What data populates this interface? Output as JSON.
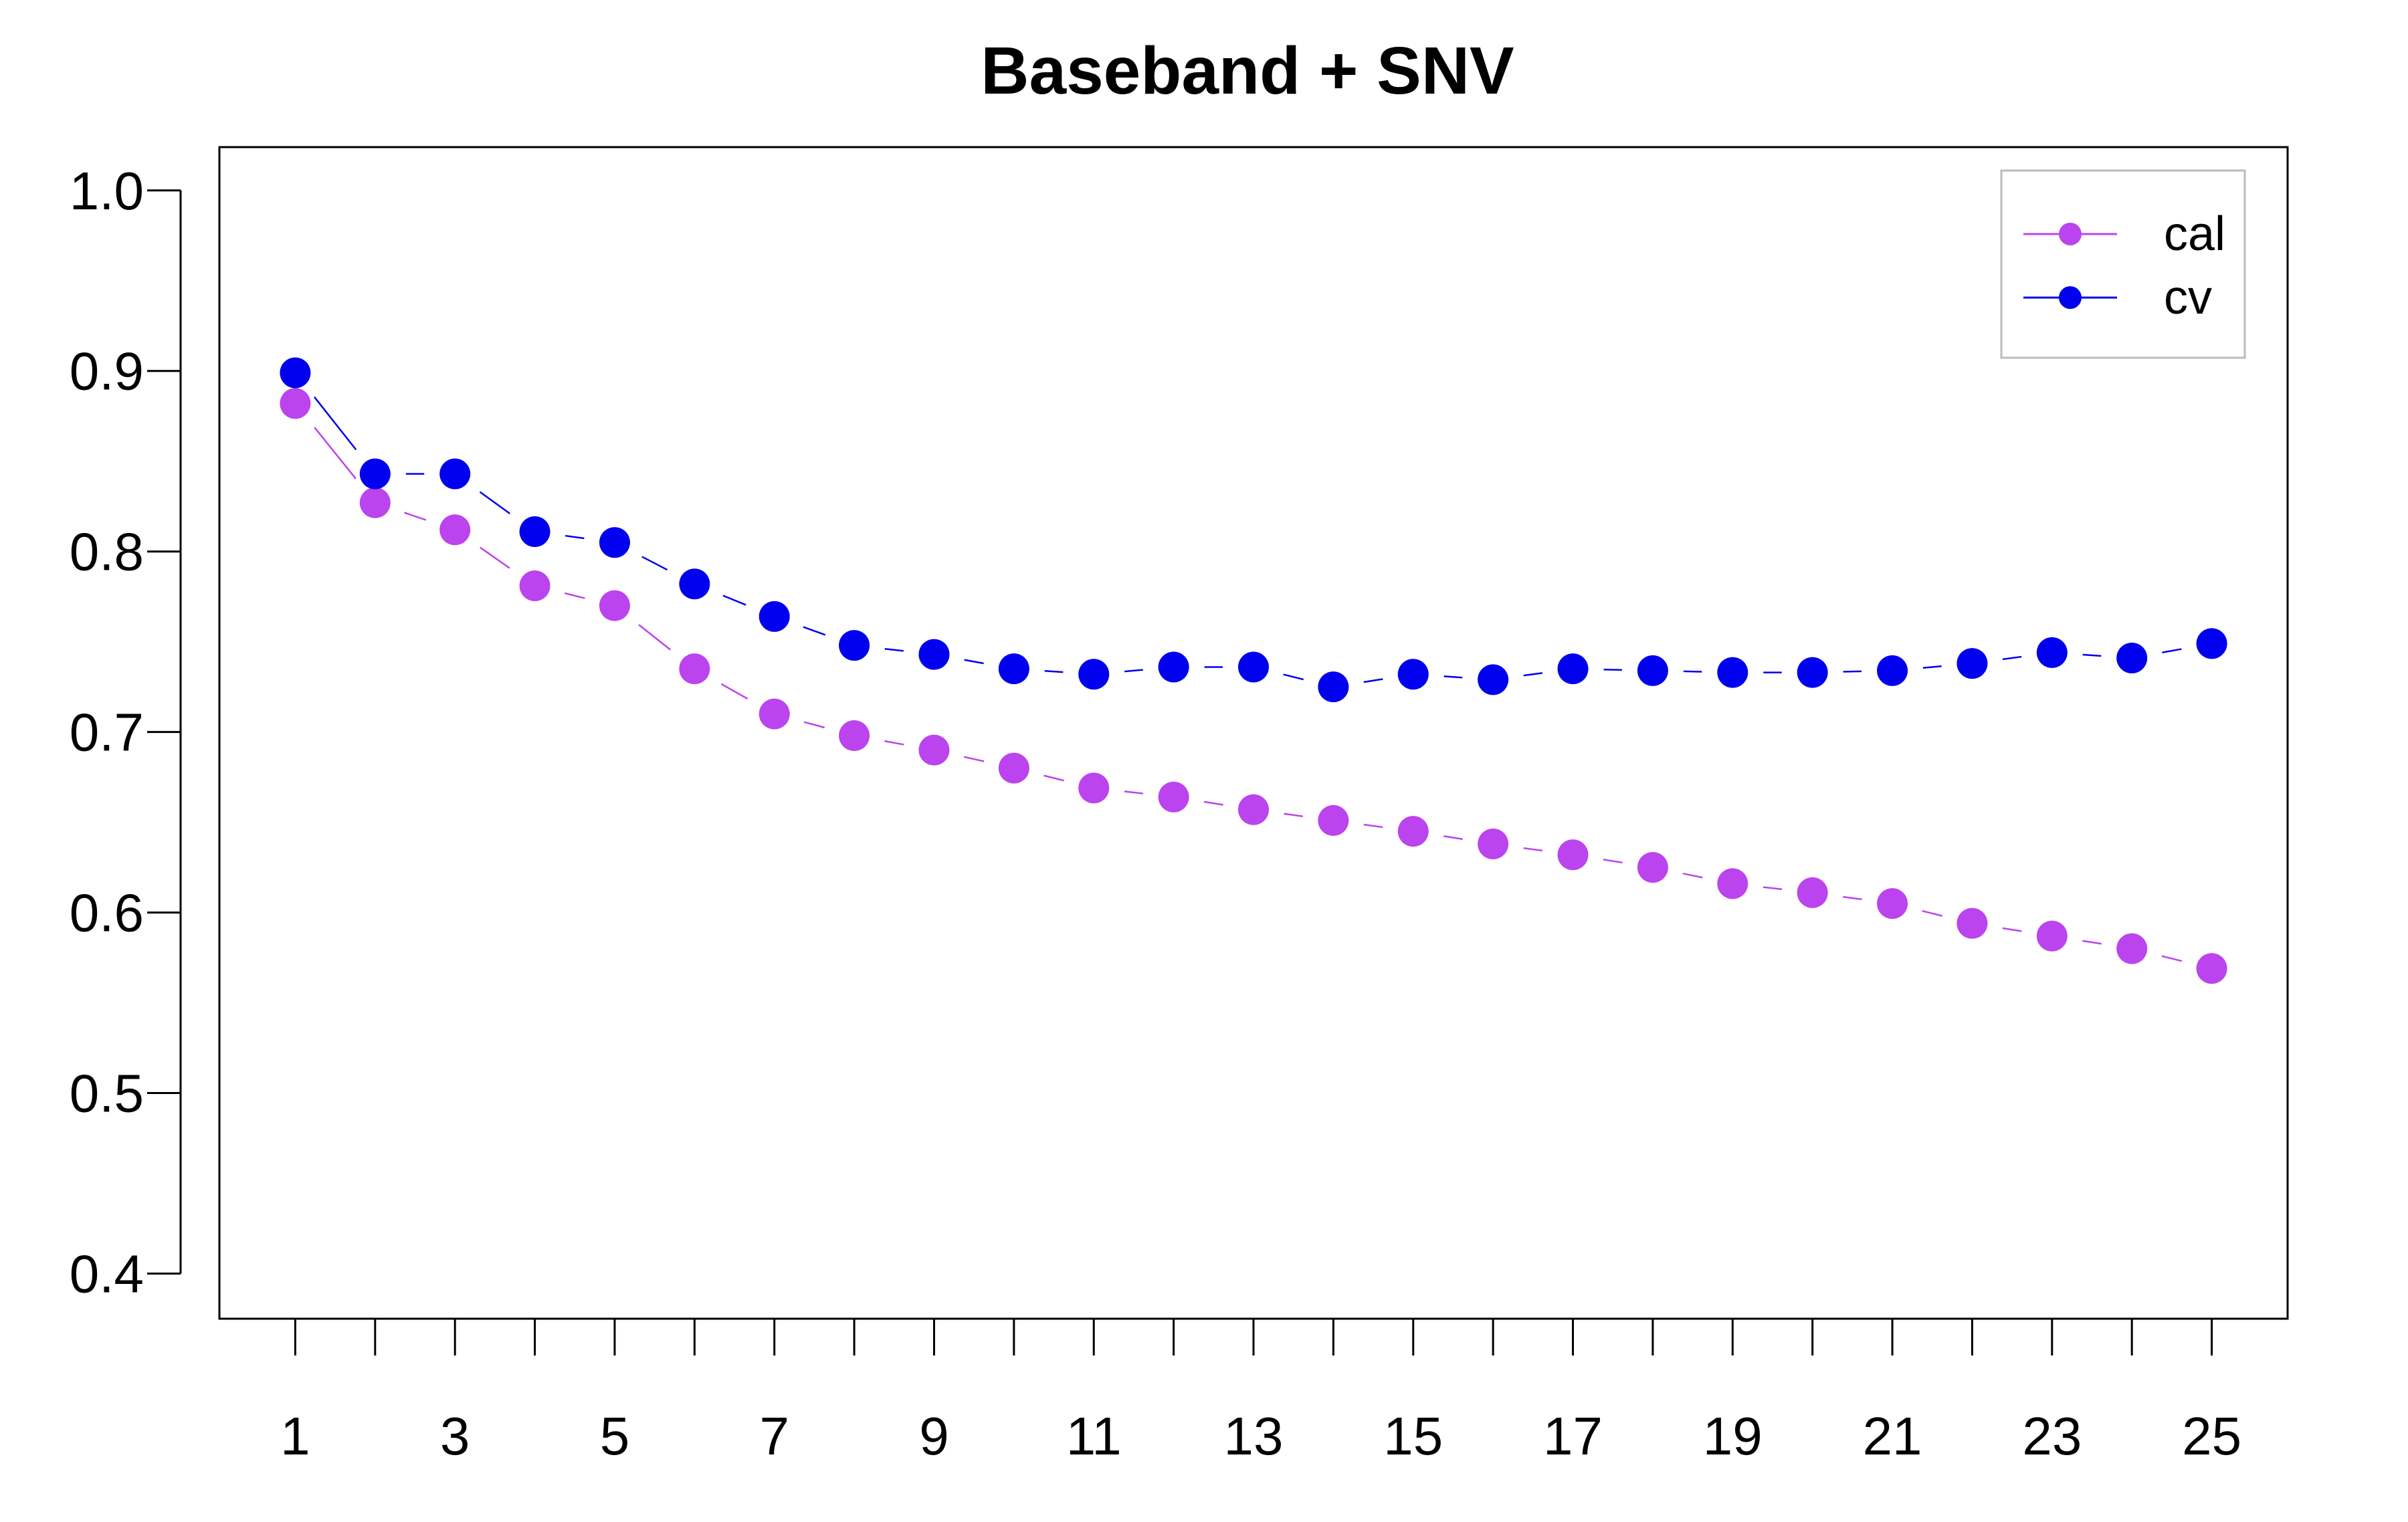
{
  "chart_data": {
    "type": "line",
    "title": "Baseband + SNV",
    "xlabel": "",
    "ylabel": "",
    "x": [
      1,
      2,
      3,
      4,
      5,
      6,
      7,
      8,
      9,
      10,
      11,
      12,
      13,
      14,
      15,
      16,
      17,
      18,
      19,
      20,
      21,
      22,
      23,
      24,
      25
    ],
    "x_tick_labels": [
      "1",
      "3",
      "5",
      "7",
      "9",
      "11",
      "13",
      "15",
      "17",
      "19",
      "21",
      "23",
      "25"
    ],
    "y_tick_labels": [
      "0.4",
      "0.5",
      "0.6",
      "0.7",
      "0.8",
      "0.9",
      "1.0"
    ],
    "xlim": [
      0.05,
      25.95
    ],
    "ylim": [
      0.375,
      1.024
    ],
    "grid": false,
    "legend_position": "top-right",
    "series": [
      {
        "name": "cal",
        "color": "#bb44ee",
        "values": [
          0.882,
          0.827,
          0.812,
          0.781,
          0.77,
          0.735,
          0.71,
          0.698,
          0.69,
          0.68,
          0.669,
          0.664,
          0.657,
          0.651,
          0.645,
          0.638,
          0.632,
          0.625,
          0.616,
          0.611,
          0.605,
          0.594,
          0.587,
          0.58,
          0.569
        ]
      },
      {
        "name": "cv",
        "color": "#0000ee",
        "values": [
          0.899,
          0.843,
          0.843,
          0.811,
          0.805,
          0.782,
          0.764,
          0.748,
          0.743,
          0.735,
          0.732,
          0.736,
          0.736,
          0.725,
          0.732,
          0.729,
          0.735,
          0.734,
          0.733,
          0.733,
          0.734,
          0.738,
          0.744,
          0.741,
          0.749
        ]
      }
    ]
  }
}
